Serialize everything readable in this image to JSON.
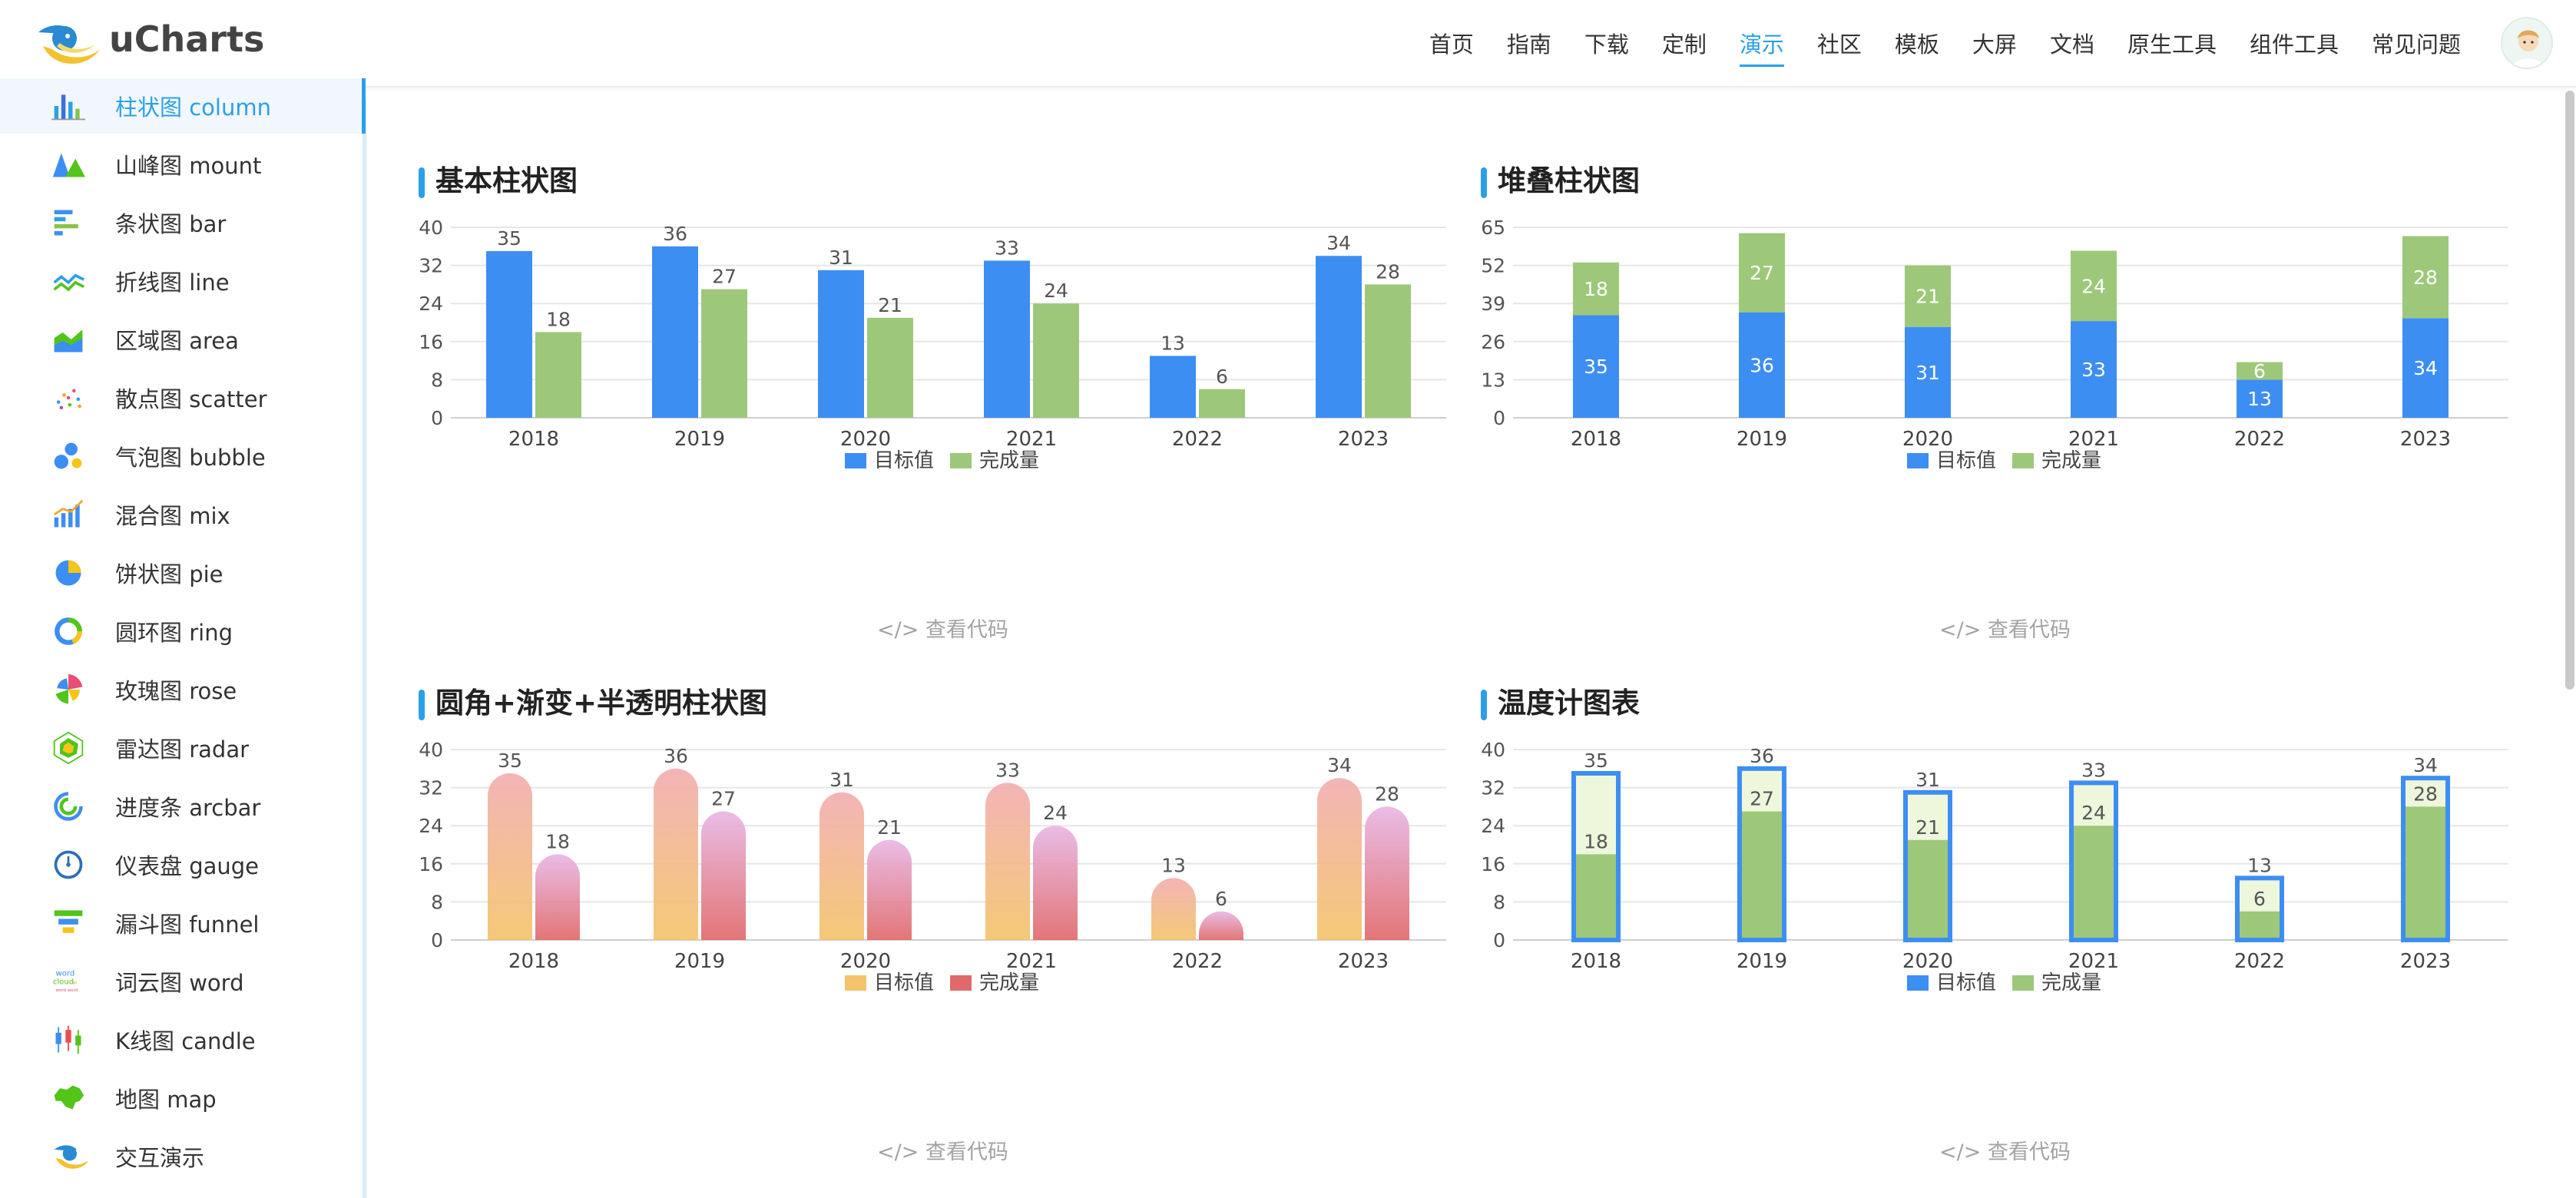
{
  "header": {
    "brand": "uCharts",
    "nav": [
      "首页",
      "指南",
      "下载",
      "定制",
      "演示",
      "社区",
      "模板",
      "大屏",
      "文档",
      "原生工具",
      "组件工具",
      "常见问题"
    ],
    "active_nav": 4
  },
  "sidebar": {
    "items": [
      {
        "label": "柱状图  column",
        "icon": "column-chart-icon"
      },
      {
        "label": "山峰图  mount",
        "icon": "mount-chart-icon"
      },
      {
        "label": "条状图  bar",
        "icon": "bar-chart-icon"
      },
      {
        "label": "折线图  line",
        "icon": "line-chart-icon"
      },
      {
        "label": "区域图  area",
        "icon": "area-chart-icon"
      },
      {
        "label": "散点图  scatter",
        "icon": "scatter-chart-icon"
      },
      {
        "label": "气泡图  bubble",
        "icon": "bubble-chart-icon"
      },
      {
        "label": "混合图  mix",
        "icon": "mix-chart-icon"
      },
      {
        "label": "饼状图  pie",
        "icon": "pie-chart-icon"
      },
      {
        "label": "圆环图  ring",
        "icon": "ring-chart-icon"
      },
      {
        "label": "玫瑰图  rose",
        "icon": "rose-chart-icon"
      },
      {
        "label": "雷达图  radar",
        "icon": "radar-chart-icon"
      },
      {
        "label": "进度条  arcbar",
        "icon": "arcbar-chart-icon"
      },
      {
        "label": "仪表盘  gauge",
        "icon": "gauge-chart-icon"
      },
      {
        "label": "漏斗图  funnel",
        "icon": "funnel-chart-icon"
      },
      {
        "label": "词云图  word",
        "icon": "word-cloud-icon"
      },
      {
        "label": "K线图  candle",
        "icon": "candle-chart-icon"
      },
      {
        "label": "地图  map",
        "icon": "map-icon"
      },
      {
        "label": "交互演示",
        "icon": "bird-logo-icon"
      }
    ],
    "active": 0
  },
  "view_code_label": "</> 查看代码",
  "chart_data": [
    {
      "title": "基本柱状图",
      "type": "bar",
      "style": "grouped",
      "categories": [
        "2018",
        "2019",
        "2020",
        "2021",
        "2022",
        "2023"
      ],
      "series": [
        {
          "name": "目标值",
          "values": [
            35,
            36,
            31,
            33,
            13,
            34
          ],
          "color": "#3d8ef2"
        },
        {
          "name": "完成量",
          "values": [
            18,
            27,
            21,
            24,
            6,
            28
          ],
          "color": "#9dc879"
        }
      ],
      "yticks": [
        0,
        8,
        16,
        24,
        32,
        40
      ],
      "ylim": [
        0,
        40
      ],
      "grid": true,
      "legend": "bottom"
    },
    {
      "title": "堆叠柱状图",
      "type": "bar",
      "style": "stacked",
      "categories": [
        "2018",
        "2019",
        "2020",
        "2021",
        "2022",
        "2023"
      ],
      "series": [
        {
          "name": "目标值",
          "values": [
            35,
            36,
            31,
            33,
            13,
            34
          ],
          "color": "#3d8ef2"
        },
        {
          "name": "完成量",
          "values": [
            18,
            27,
            21,
            24,
            6,
            28
          ],
          "color": "#9dc879"
        }
      ],
      "yticks": [
        0,
        13,
        26,
        39,
        52,
        65
      ],
      "ylim": [
        0,
        65
      ],
      "grid": true,
      "legend": "bottom"
    },
    {
      "title": "圆角+渐变+半透明柱状图",
      "type": "bar",
      "style": "rounded-gradient",
      "categories": [
        "2018",
        "2019",
        "2020",
        "2021",
        "2022",
        "2023"
      ],
      "series": [
        {
          "name": "目标值",
          "values": [
            35,
            36,
            31,
            33,
            13,
            34
          ],
          "color": "#f3c46b",
          "color_top": "#f2aeb0"
        },
        {
          "name": "完成量",
          "values": [
            18,
            27,
            21,
            24,
            6,
            28
          ],
          "color": "#e06a6a",
          "color_top": "#e8b6e4"
        }
      ],
      "yticks": [
        0,
        8,
        16,
        24,
        32,
        40
      ],
      "ylim": [
        0,
        40
      ],
      "grid": true,
      "legend": "bottom"
    },
    {
      "title": "温度计图表",
      "type": "bar",
      "style": "thermometer",
      "categories": [
        "2018",
        "2019",
        "2020",
        "2021",
        "2022",
        "2023"
      ],
      "series": [
        {
          "name": "目标值",
          "values": [
            35,
            36,
            31,
            33,
            13,
            34
          ],
          "color": "#3d8ef2"
        },
        {
          "name": "完成量",
          "values": [
            18,
            27,
            21,
            24,
            6,
            28
          ],
          "color": "#9dc879"
        }
      ],
      "yticks": [
        0,
        8,
        16,
        24,
        32,
        40
      ],
      "ylim": [
        0,
        40
      ],
      "grid": true,
      "legend": "bottom"
    }
  ]
}
